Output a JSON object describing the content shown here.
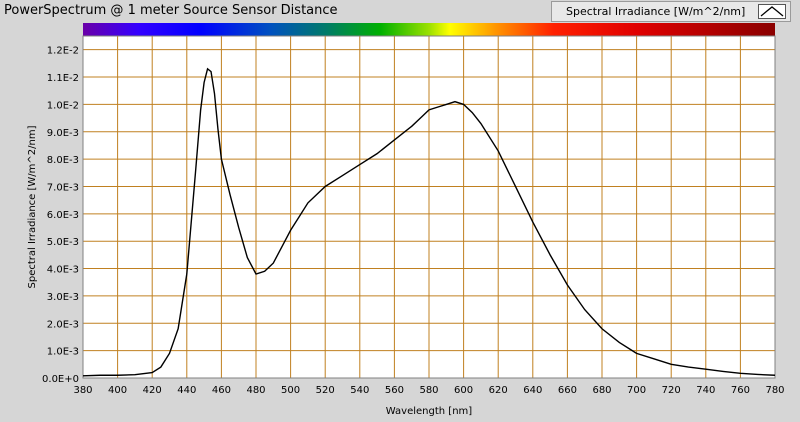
{
  "window": {
    "title": "PowerSpectrum @ 1 meter Source Sensor Distance",
    "legend_label": "Spectral Irradiance [W/m^2/nm]"
  },
  "chart_data": {
    "type": "line",
    "title": "PowerSpectrum @ 1 meter Source Sensor Distance",
    "xlabel": "Wavelength [nm]",
    "ylabel": "Spectral Irradiance [W/m^2/nm]",
    "xlim": [
      380,
      780
    ],
    "ylim": [
      0,
      0.0125
    ],
    "xticks": [
      380,
      400,
      420,
      440,
      460,
      480,
      500,
      520,
      540,
      560,
      580,
      600,
      620,
      640,
      660,
      680,
      700,
      720,
      740,
      760,
      780
    ],
    "yticks": [
      {
        "v": 0.0,
        "label": "0.0E+0"
      },
      {
        "v": 0.001,
        "label": "1.0E-3"
      },
      {
        "v": 0.002,
        "label": "2.0E-3"
      },
      {
        "v": 0.003,
        "label": "3.0E-3"
      },
      {
        "v": 0.004,
        "label": "4.0E-3"
      },
      {
        "v": 0.005,
        "label": "5.0E-3"
      },
      {
        "v": 0.006,
        "label": "6.0E-3"
      },
      {
        "v": 0.007,
        "label": "7.0E-3"
      },
      {
        "v": 0.008,
        "label": "8.0E-3"
      },
      {
        "v": 0.009,
        "label": "9.0E-3"
      },
      {
        "v": 0.01,
        "label": "1.0E-2"
      },
      {
        "v": 0.011,
        "label": "1.1E-2"
      },
      {
        "v": 0.012,
        "label": "1.2E-2"
      }
    ],
    "grid": true,
    "legend_position": "top-right",
    "colors": {
      "plot_bg": "#ffffff",
      "grid": "#c08020",
      "line": "#000000"
    },
    "series": [
      {
        "name": "Spectral Irradiance [W/m^2/nm]",
        "x": [
          380,
          390,
          400,
          410,
          420,
          425,
          430,
          435,
          440,
          445,
          448,
          450,
          452,
          454,
          456,
          458,
          460,
          465,
          470,
          475,
          480,
          485,
          490,
          495,
          500,
          505,
          510,
          520,
          530,
          540,
          550,
          560,
          570,
          575,
          580,
          585,
          590,
          595,
          600,
          605,
          610,
          620,
          630,
          640,
          650,
          660,
          670,
          680,
          690,
          700,
          710,
          720,
          730,
          740,
          750,
          760,
          770,
          780
        ],
        "values": [
          8e-05,
          0.0001,
          0.0001,
          0.00012,
          0.0002,
          0.0004,
          0.0009,
          0.0018,
          0.0038,
          0.0075,
          0.0098,
          0.0108,
          0.0113,
          0.0112,
          0.0104,
          0.0091,
          0.008,
          0.0067,
          0.0055,
          0.0044,
          0.0038,
          0.0039,
          0.0042,
          0.0048,
          0.0054,
          0.0059,
          0.0064,
          0.007,
          0.0074,
          0.0078,
          0.0082,
          0.0087,
          0.0092,
          0.0095,
          0.0098,
          0.0099,
          0.01,
          0.0101,
          0.01,
          0.0097,
          0.0093,
          0.0083,
          0.007,
          0.0057,
          0.0045,
          0.0034,
          0.0025,
          0.0018,
          0.0013,
          0.0009,
          0.0007,
          0.0005,
          0.0004,
          0.00032,
          0.00024,
          0.00017,
          0.00013,
          0.0001
        ]
      }
    ]
  }
}
